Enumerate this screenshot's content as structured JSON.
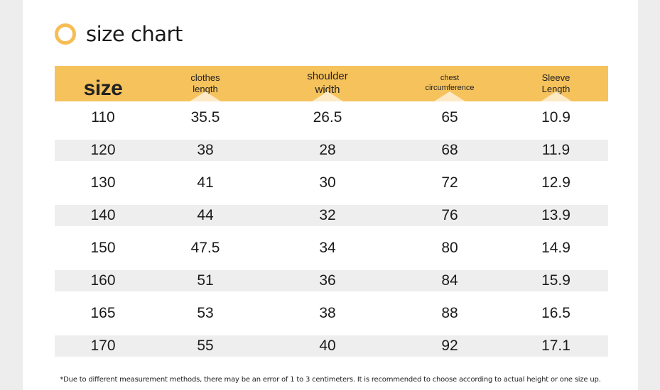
{
  "title": "size chart",
  "header": {
    "size": "size",
    "clothes_length_line1": "clothes",
    "clothes_length_line2": "length",
    "shoulder_width_line1": "shoulder",
    "shoulder_width_line2": "width",
    "chest_line1": "chest",
    "chest_line2": "circumference",
    "sleeve_line1": "Sleeve",
    "sleeve_line2": "Length"
  },
  "rows": [
    {
      "size": "110",
      "clothes_length": "35.5",
      "shoulder_width": "26.5",
      "chest": "65",
      "sleeve": "10.9"
    },
    {
      "size": "120",
      "clothes_length": "38",
      "shoulder_width": "28",
      "chest": "68",
      "sleeve": "11.9"
    },
    {
      "size": "130",
      "clothes_length": "41",
      "shoulder_width": "30",
      "chest": "72",
      "sleeve": "12.9"
    },
    {
      "size": "140",
      "clothes_length": "44",
      "shoulder_width": "32",
      "chest": "76",
      "sleeve": "13.9"
    },
    {
      "size": "150",
      "clothes_length": "47.5",
      "shoulder_width": "34",
      "chest": "80",
      "sleeve": "14.9"
    },
    {
      "size": "160",
      "clothes_length": "51",
      "shoulder_width": "36",
      "chest": "84",
      "sleeve": "15.9"
    },
    {
      "size": "165",
      "clothes_length": "53",
      "shoulder_width": "38",
      "chest": "88",
      "sleeve": "16.5"
    },
    {
      "size": "170",
      "clothes_length": "55",
      "shoulder_width": "40",
      "chest": "92",
      "sleeve": "17.1"
    }
  ],
  "note": "*Due to different measurement methods, there may be an error of 1 to 3 centimeters. It is recommended to choose according to actual height or one size up.",
  "colors": {
    "accent": "#f6c25c",
    "ring": "#f6bd55",
    "stripe": "#eeeeee"
  }
}
